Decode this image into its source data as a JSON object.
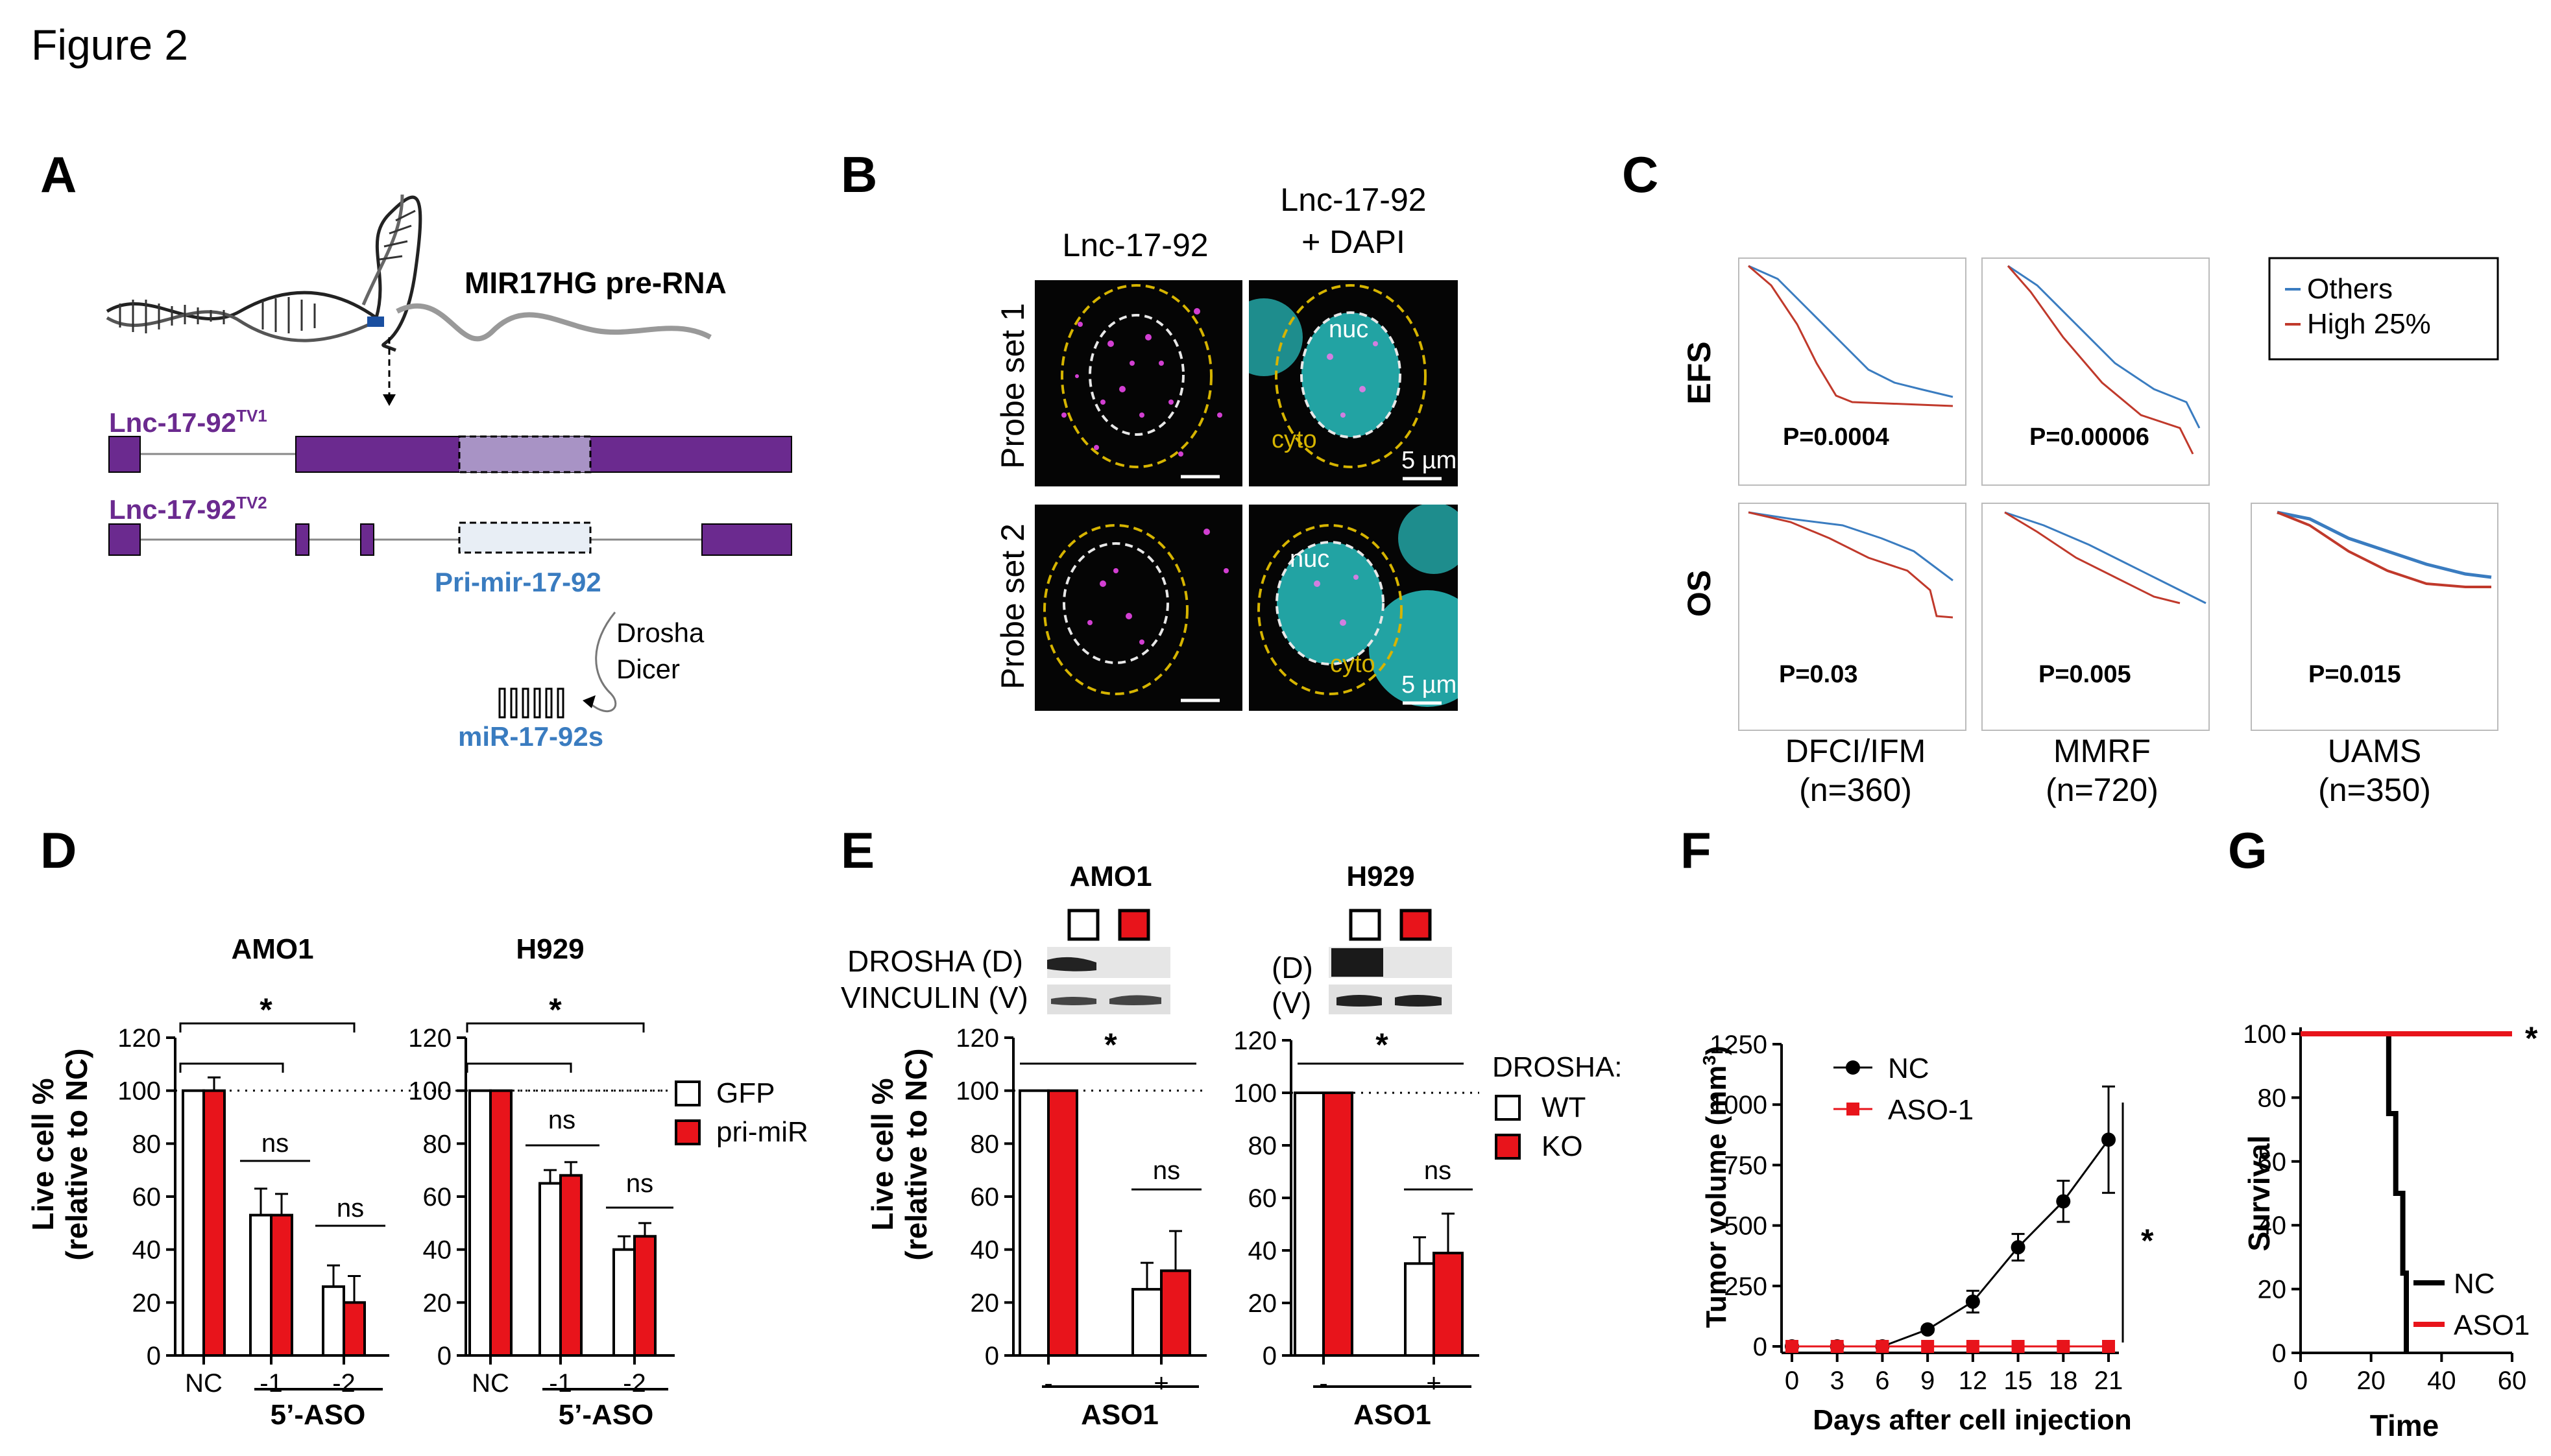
{
  "figure_title": "Figure 2",
  "panel_labels": [
    "A",
    "B",
    "C",
    "D",
    "E",
    "F",
    "G"
  ],
  "panelA": {
    "pre_rna": "MIR17HG pre-RNA",
    "tv1_name": "Lnc-17-92",
    "tv1_sup": "TV1",
    "tv2_name": "Lnc-17-92",
    "tv2_sup": "TV2",
    "pri": "Pri-mir-17-92",
    "drosha": "Drosha",
    "dicer": "Dicer",
    "mir": "miR-17-92s",
    "colors": {
      "exon": "#6b2a8f",
      "pri_box_tv1": "#a893c5",
      "pri_box_tv2": "#e8eef5",
      "label": "#6b2a8f",
      "blue": "#3a7cc0"
    }
  },
  "panelB": {
    "col1": "Lnc-17-92",
    "col2a": "Lnc-17-92",
    "col2b": "+ DAPI",
    "row1": "Probe set 1",
    "row2": "Probe set 2",
    "nuc": "nuc",
    "cyto": "cyto",
    "scale": "5 µm"
  },
  "panelC": {
    "legend": [
      "Others",
      "High 25%"
    ],
    "row_efs": "EFS",
    "row_os": "OS",
    "pvalues": {
      "efs_dfci": "P=0.0004",
      "efs_mmrf": "P=0.00006",
      "os_dfci": "P=0.03",
      "os_mmrf": "P=0.005",
      "os_uams": "P=0.015"
    },
    "cohorts": [
      {
        "name": "DFCI/IFM",
        "n": "(n=360)"
      },
      {
        "name": "MMRF",
        "n": "(n=720)"
      },
      {
        "name": "UAMS",
        "n": "(n=350)"
      }
    ],
    "colors": {
      "others": "#3a7cc0",
      "high": "#c0392b"
    }
  },
  "panelD": {
    "ylabel1": "Live cell %",
    "ylabel2": "(relative to NC)",
    "legend": [
      "GFP",
      "pri-miR"
    ],
    "xaxis_label": "5’-ASO",
    "ns": "ns",
    "star": "*"
  },
  "panelE": {
    "cell_lines": [
      "AMO1",
      "H929"
    ],
    "blot_labels_amo1": [
      "DROSHA (D)",
      "VINCULIN (V)"
    ],
    "blot_labels_h929": [
      "(D)",
      "(V)"
    ],
    "legend_title": "DROSHA:",
    "legend": [
      "WT",
      "KO"
    ],
    "xaxis_label": "ASO1",
    "ns": "ns",
    "star": "*"
  },
  "panelF": {
    "ylabel": "Tumor volume (mm3)",
    "xlabel": "Days after cell injection",
    "star": "*"
  },
  "panelG": {
    "ylabel": "Survival",
    "xlabel": "Time",
    "star": "*"
  },
  "chart_data": [
    {
      "id": "D_AMO1",
      "type": "bar",
      "title": "AMO1",
      "categories": [
        "NC",
        "-1",
        "-2"
      ],
      "series": [
        {
          "name": "GFP",
          "values": [
            100,
            53,
            26
          ],
          "errors": [
            0,
            10,
            8
          ]
        },
        {
          "name": "pri-miR",
          "values": [
            100,
            53,
            20
          ],
          "errors": [
            5,
            8,
            10
          ]
        }
      ],
      "ylim": [
        0,
        120
      ],
      "yticks": [
        0,
        20,
        40,
        60,
        80,
        100,
        120
      ],
      "ylabel": "Live cell %\n(relative to NC)",
      "colors": [
        "#ffffff",
        "#e8141b"
      ]
    },
    {
      "id": "D_H929",
      "type": "bar",
      "title": "H929",
      "categories": [
        "NC",
        "-1",
        "-2"
      ],
      "series": [
        {
          "name": "GFP",
          "values": [
            100,
            65,
            40
          ],
          "errors": [
            0,
            5,
            5
          ]
        },
        {
          "name": "pri-miR",
          "values": [
            100,
            68,
            45
          ],
          "errors": [
            0,
            5,
            5
          ]
        }
      ],
      "ylim": [
        0,
        120
      ],
      "yticks": [
        0,
        20,
        40,
        60,
        80,
        100,
        120
      ],
      "colors": [
        "#ffffff",
        "#e8141b"
      ]
    },
    {
      "id": "E_AMO1",
      "type": "bar",
      "title": "AMO1",
      "categories": [
        "-",
        "+"
      ],
      "series": [
        {
          "name": "WT",
          "values": [
            100,
            25
          ],
          "errors": [
            0,
            10
          ]
        },
        {
          "name": "KO",
          "values": [
            100,
            32
          ],
          "errors": [
            0,
            15
          ]
        }
      ],
      "ylim": [
        0,
        120
      ],
      "yticks": [
        0,
        20,
        40,
        60,
        80,
        100,
        120
      ],
      "ylabel": "Live cell %\n(relative to NC)",
      "colors": [
        "#ffffff",
        "#e8141b"
      ]
    },
    {
      "id": "E_H929",
      "type": "bar",
      "title": "H929",
      "categories": [
        "-",
        "+"
      ],
      "series": [
        {
          "name": "WT",
          "values": [
            100,
            35
          ],
          "errors": [
            0,
            10
          ]
        },
        {
          "name": "KO",
          "values": [
            100,
            39
          ],
          "errors": [
            0,
            15
          ]
        }
      ],
      "ylim": [
        0,
        120
      ],
      "yticks": [
        0,
        20,
        40,
        60,
        80,
        100,
        120
      ],
      "colors": [
        "#ffffff",
        "#e8141b"
      ]
    },
    {
      "id": "F",
      "type": "line",
      "x": [
        0,
        3,
        6,
        9,
        12,
        15,
        18,
        21
      ],
      "series": [
        {
          "name": "NC",
          "values": [
            0,
            0,
            0,
            70,
            185,
            410,
            600,
            855
          ],
          "errors": [
            0,
            0,
            0,
            10,
            45,
            55,
            85,
            220
          ],
          "color": "#000000"
        },
        {
          "name": "ASO-1",
          "values": [
            0,
            0,
            0,
            0,
            0,
            0,
            0,
            0
          ],
          "color": "#e8141b"
        }
      ],
      "xlim": [
        0,
        21
      ],
      "ylim": [
        0,
        1250
      ],
      "yticks": [
        0,
        250,
        500,
        750,
        1000,
        1250
      ],
      "xlabel": "Days after cell injection",
      "ylabel": "Tumor volume (mm3)"
    },
    {
      "id": "G",
      "type": "line",
      "series": [
        {
          "name": "NC",
          "x": [
            0,
            25,
            25,
            27,
            27,
            29,
            29,
            30,
            30
          ],
          "values": [
            100,
            100,
            75,
            75,
            50,
            50,
            25,
            25,
            0
          ],
          "color": "#000000"
        },
        {
          "name": "ASO1",
          "x": [
            0,
            60
          ],
          "values": [
            100,
            100
          ],
          "color": "#e8141b"
        }
      ],
      "xlim": [
        0,
        60
      ],
      "ylim": [
        0,
        100
      ],
      "xticks": [
        0,
        20,
        40,
        60
      ],
      "yticks": [
        0,
        20,
        40,
        60,
        80,
        100
      ],
      "xlabel": "Time",
      "ylabel": "Survival"
    }
  ]
}
